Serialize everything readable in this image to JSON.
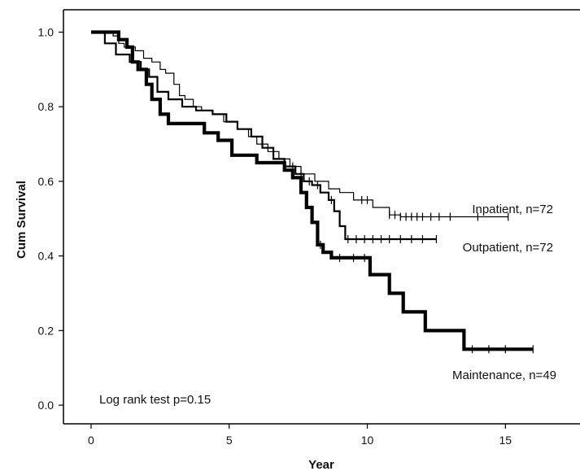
{
  "chart_data": {
    "type": "line",
    "step": true,
    "title": "",
    "xlabel": "Year",
    "ylabel": "Cum Survival",
    "xlim": [
      -1,
      17.7
    ],
    "ylim": [
      -0.05,
      1.06
    ],
    "x_ticks": [
      0,
      5,
      10,
      15
    ],
    "y_ticks": [
      0.0,
      0.2,
      0.4,
      0.6,
      0.8,
      1.0
    ],
    "y_tick_labels": [
      "0.0",
      "0.2",
      "0.4",
      "0.6",
      "0.8",
      "1.0"
    ],
    "grid": false,
    "legend": "none",
    "annotation": "Log rank test p=0.15",
    "series": [
      {
        "name": "Inpatient, n=72",
        "line_weight": "thin",
        "steps": [
          [
            0,
            1.0
          ],
          [
            0.8,
            0.99
          ],
          [
            1.0,
            0.97
          ],
          [
            1.2,
            0.96
          ],
          [
            1.6,
            0.95
          ],
          [
            1.9,
            0.93
          ],
          [
            2.2,
            0.92
          ],
          [
            2.5,
            0.9
          ],
          [
            2.7,
            0.89
          ],
          [
            3.0,
            0.86
          ],
          [
            3.2,
            0.83
          ],
          [
            3.4,
            0.82
          ],
          [
            3.7,
            0.8
          ],
          [
            4.0,
            0.79
          ],
          [
            4.4,
            0.78
          ],
          [
            4.8,
            0.76
          ],
          [
            5.3,
            0.74
          ],
          [
            5.7,
            0.72
          ],
          [
            6.0,
            0.7
          ],
          [
            6.4,
            0.68
          ],
          [
            6.8,
            0.66
          ],
          [
            7.2,
            0.64
          ],
          [
            7.6,
            0.62
          ],
          [
            8.1,
            0.6
          ],
          [
            8.6,
            0.58
          ],
          [
            9.0,
            0.57
          ],
          [
            9.5,
            0.55
          ],
          [
            10.2,
            0.53
          ],
          [
            10.8,
            0.51
          ],
          [
            11.2,
            0.505
          ],
          [
            15.1,
            0.505
          ]
        ],
        "censor_x": [
          9.8,
          10.0,
          10.8,
          11.0,
          11.2,
          11.4,
          11.6,
          11.8,
          12.0,
          12.3,
          12.6,
          13.0,
          14.0,
          15.1
        ]
      },
      {
        "name": "Outpatient, n=72",
        "line_weight": "medium",
        "steps": [
          [
            0,
            1.0
          ],
          [
            0.5,
            0.97
          ],
          [
            0.9,
            0.94
          ],
          [
            1.4,
            0.92
          ],
          [
            1.8,
            0.9
          ],
          [
            2.1,
            0.88
          ],
          [
            2.4,
            0.84
          ],
          [
            2.8,
            0.82
          ],
          [
            3.3,
            0.8
          ],
          [
            3.8,
            0.79
          ],
          [
            4.4,
            0.78
          ],
          [
            4.9,
            0.76
          ],
          [
            5.3,
            0.74
          ],
          [
            5.8,
            0.72
          ],
          [
            6.2,
            0.69
          ],
          [
            6.6,
            0.66
          ],
          [
            7.0,
            0.64
          ],
          [
            7.4,
            0.62
          ],
          [
            7.7,
            0.6
          ],
          [
            8.0,
            0.59
          ],
          [
            8.3,
            0.57
          ],
          [
            8.6,
            0.55
          ],
          [
            8.8,
            0.52
          ],
          [
            9.0,
            0.48
          ],
          [
            9.2,
            0.445
          ],
          [
            12.5,
            0.445
          ]
        ],
        "censor_x": [
          7.3,
          7.6,
          7.9,
          8.2,
          8.7,
          9.3,
          9.6,
          9.9,
          10.2,
          10.5,
          10.8,
          11.2,
          11.6,
          12.0,
          12.5
        ]
      },
      {
        "name": "Maintenance, n=49",
        "line_weight": "thick",
        "steps": [
          [
            0,
            1.0
          ],
          [
            1.0,
            0.98
          ],
          [
            1.3,
            0.96
          ],
          [
            1.5,
            0.92
          ],
          [
            1.7,
            0.9
          ],
          [
            2.0,
            0.86
          ],
          [
            2.2,
            0.82
          ],
          [
            2.5,
            0.78
          ],
          [
            2.8,
            0.755
          ],
          [
            4.1,
            0.73
          ],
          [
            4.6,
            0.71
          ],
          [
            5.1,
            0.67
          ],
          [
            6.0,
            0.65
          ],
          [
            7.0,
            0.63
          ],
          [
            7.3,
            0.61
          ],
          [
            7.6,
            0.57
          ],
          [
            7.8,
            0.53
          ],
          [
            8.0,
            0.49
          ],
          [
            8.2,
            0.43
          ],
          [
            8.4,
            0.41
          ],
          [
            8.7,
            0.395
          ],
          [
            10.1,
            0.35
          ],
          [
            10.8,
            0.3
          ],
          [
            11.3,
            0.25
          ],
          [
            12.1,
            0.2
          ],
          [
            13.5,
            0.15
          ],
          [
            16.0,
            0.15
          ]
        ],
        "censor_x": [
          8.3,
          9.0,
          9.5,
          9.9,
          13.8,
          14.4,
          15.0,
          16.0
        ]
      }
    ]
  }
}
